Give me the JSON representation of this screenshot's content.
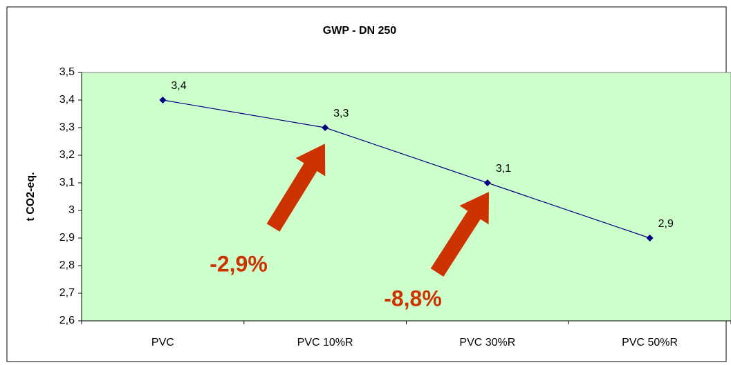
{
  "chart_data": {
    "type": "line",
    "title": "GWP - DN 250",
    "y_label": "t CO2-eq.",
    "categories": [
      "PVC",
      "PVC 10%R",
      "PVC 30%R",
      "PVC 50%R"
    ],
    "series": [
      {
        "name": "GWP",
        "color": "#000080",
        "values": [
          3.4,
          3.3,
          3.1,
          2.9
        ],
        "value_labels": [
          "3,4",
          "3,3",
          "3,1",
          "2,9"
        ]
      }
    ],
    "ylim": [
      2.6,
      3.5
    ],
    "yticks": [
      {
        "value": 2.6,
        "label": "2,6"
      },
      {
        "value": 2.7,
        "label": "2,7"
      },
      {
        "value": 2.8,
        "label": "2,8"
      },
      {
        "value": 2.9,
        "label": "2,9"
      },
      3,
      {
        "value": 3.1,
        "label": "3,1"
      },
      {
        "value": 3.2,
        "label": "3,2"
      },
      {
        "value": 3.3,
        "label": "3,3"
      },
      {
        "value": 3.4,
        "label": "3,4"
      },
      {
        "value": 3.5,
        "label": "3,5"
      }
    ],
    "annotations": [
      "-2,9%",
      "-8,8%"
    ],
    "background": "#ccffcc"
  }
}
